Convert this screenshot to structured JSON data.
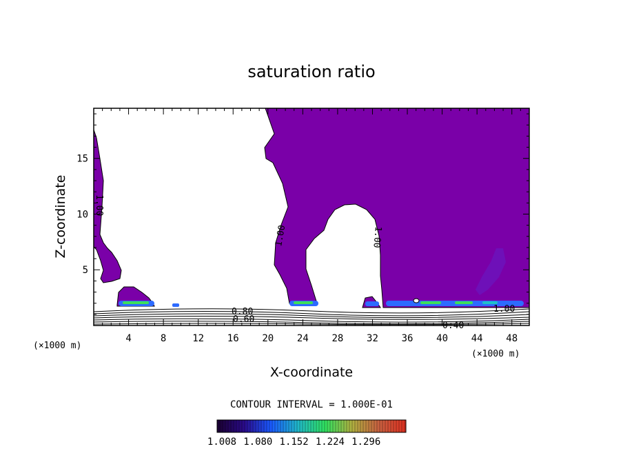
{
  "chart_data": {
    "type": "contour",
    "title": "saturation ratio",
    "xlabel": "X-coordinate",
    "ylabel": "Z-coordinate",
    "x_unit": "(×1000 m)",
    "xlim": [
      0,
      50
    ],
    "ylim": [
      0,
      19.5
    ],
    "xticks": [
      4,
      8,
      12,
      16,
      20,
      24,
      28,
      32,
      36,
      40,
      44,
      48
    ],
    "yticks": [
      5,
      10,
      15
    ],
    "contour_interval_text": "CONTOUR INTERVAL = 1.000E-01",
    "fill_color": "#7a00a8",
    "colorbar": {
      "tick_labels": [
        "1.008",
        "1.080",
        "1.152",
        "1.224",
        "1.296"
      ],
      "colors": [
        "#1a0030",
        "#2a0a8a",
        "#1a5aff",
        "#20b8c8",
        "#30e060",
        "#b0b040",
        "#c86040",
        "#e03020"
      ]
    },
    "contour_labels": [
      {
        "text": "1.00",
        "x": 0.6,
        "y": 11.5
      },
      {
        "text": "1.00",
        "x": 17,
        "y": 8.1
      },
      {
        "text": "1.00",
        "x": 25,
        "y": 8.2
      },
      {
        "text": "1.00",
        "x": 45.8,
        "y": 1.4
      },
      {
        "text": "0.80",
        "x": 13.8,
        "y": 1.2
      },
      {
        "text": "0.60",
        "x": 13.8,
        "y": 0.6
      },
      {
        "text": "0.40",
        "x": 45.5,
        "y": 0.0
      }
    ]
  }
}
